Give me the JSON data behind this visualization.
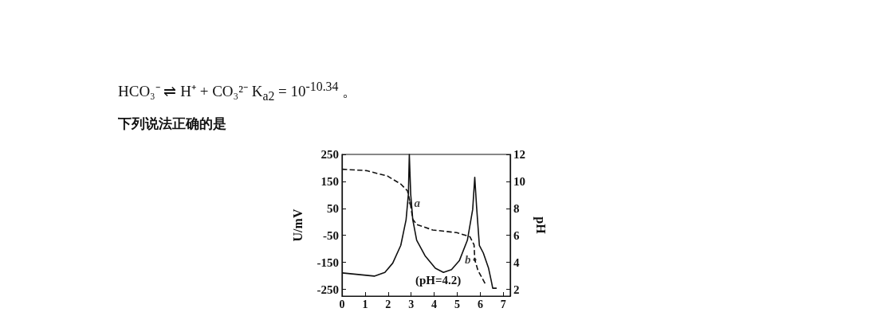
{
  "chart_data": {
    "type": "line",
    "title": "HCO₃⁻ ⇌ H⁺ + CO₃²⁻    K$_{a2}$ = 10$^{-10.34}$ 。",
    "subtitle": "下列说法正确的是",
    "ylabel": "U/mV",
    "y2label": "pH",
    "xlim": [
      0,
      7.3
    ],
    "xticks": [
      0,
      1,
      2,
      3,
      4,
      5,
      6,
      7
    ],
    "ylim": [
      -275,
      250
    ],
    "yticks": [
      -250,
      -150,
      -50,
      50,
      150,
      250
    ],
    "y2lim": [
      1.5,
      12
    ],
    "y2ticks": [
      2,
      4,
      6,
      8,
      10,
      12
    ],
    "grid": false,
    "marker": "none",
    "series": [
      {
        "color": "#111111",
        "line_style": "solid",
        "x": [
          0,
          1.4,
          1.86,
          2.2,
          2.55,
          2.78,
          2.88,
          2.92,
          2.98,
          3.07,
          3.24,
          3.6,
          4.05,
          4.4,
          4.75,
          5.09,
          5.44,
          5.67,
          5.76,
          5.84,
          5.96,
          6.13,
          6.36,
          6.48,
          6.54,
          6.71
        ],
        "values": [
          -189,
          -201,
          -187,
          -153,
          -87,
          8,
          103,
          250,
          103,
          8,
          -68,
          -125,
          -172,
          -187,
          -177,
          -144,
          -68,
          46,
          165,
          55,
          -87,
          -115,
          -172,
          -220,
          -246,
          -246
        ]
      },
      {
        "color": "#111111",
        "line_style": "dashed",
        "axis": "y2",
        "x": [
          0,
          1.05,
          1.97,
          2.55,
          2.84,
          2.96,
          3.07,
          3.24,
          3.94,
          4.98,
          5.55,
          5.73,
          5.76,
          5.9,
          6.25
        ],
        "values": [
          10.9,
          10.8,
          10.4,
          9.8,
          9.3,
          8.4,
          7.2,
          6.8,
          6.4,
          6.2,
          5.9,
          5.3,
          4.2,
          3.4,
          2.3
        ]
      }
    ],
    "annotations": [
      {
        "text": "a",
        "x": 2.96,
        "y": 70
      },
      {
        "text": "b",
        "x": 5.76,
        "y": -140
      },
      "(pH=4.2)"
    ]
  }
}
